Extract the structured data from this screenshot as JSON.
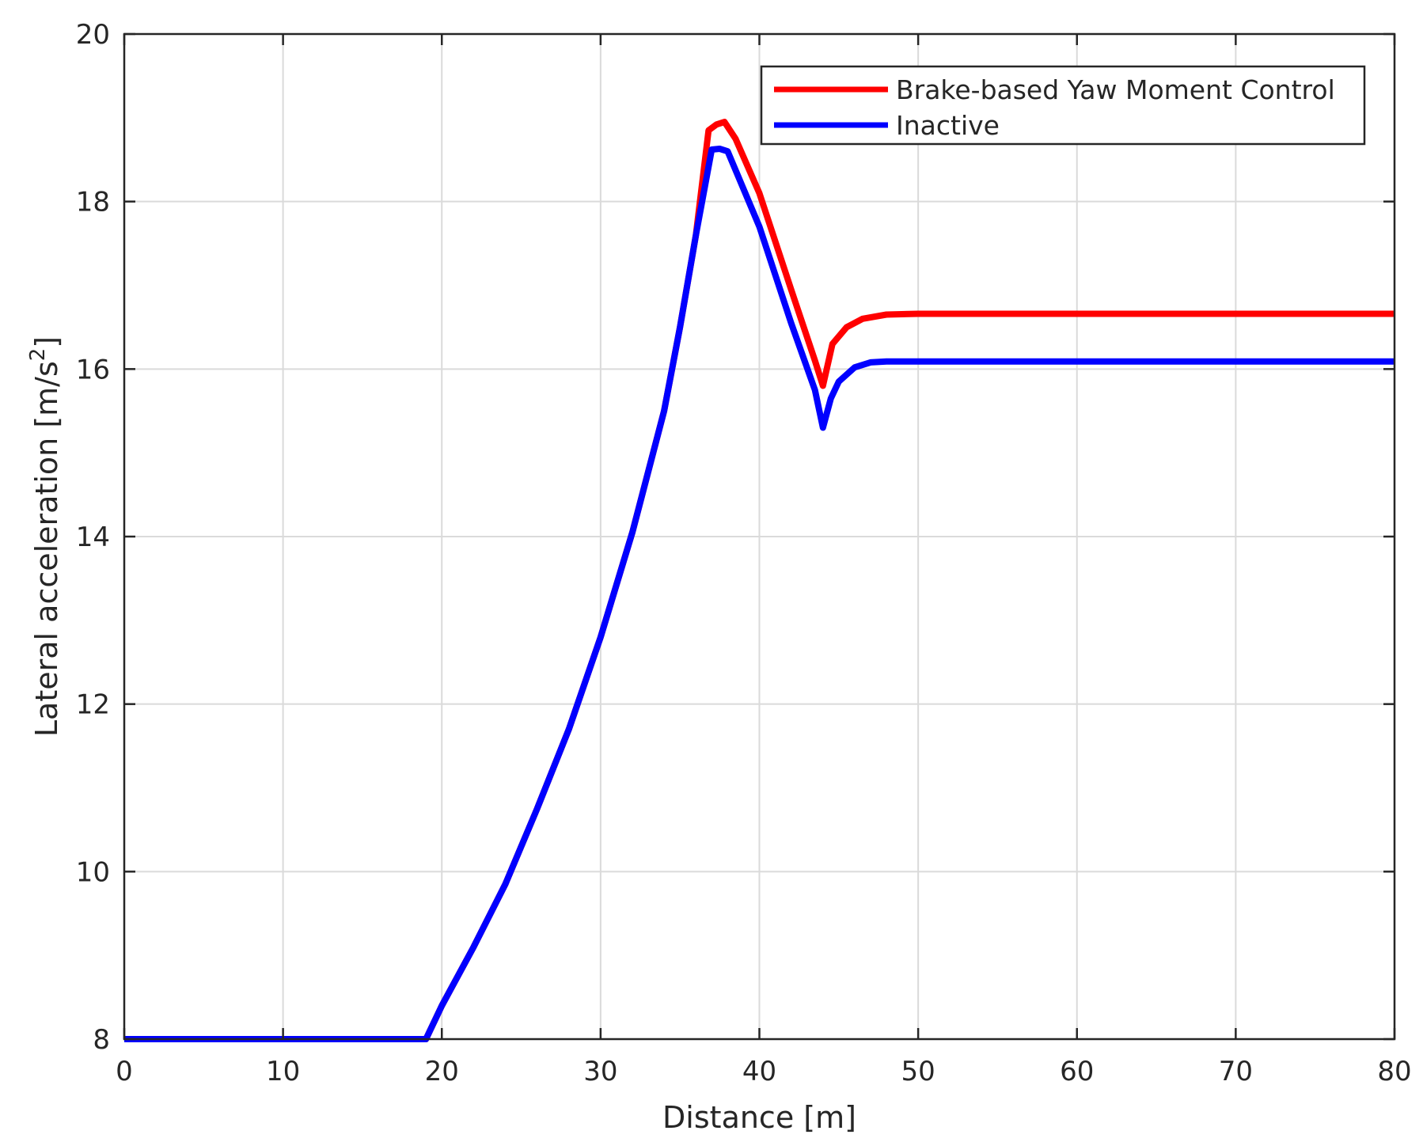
{
  "chart_data": {
    "type": "line",
    "title": "",
    "xlabel": "Distance [m]",
    "ylabel": "Lateral acceleration [m/s",
    "ylabel_superscript": "2",
    "ylabel_suffix": "]",
    "xlim": [
      0,
      80
    ],
    "ylim": [
      8,
      20
    ],
    "xticks": [
      "0",
      "10",
      "20",
      "30",
      "40",
      "50",
      "60",
      "70",
      "80"
    ],
    "yticks": [
      "8",
      "10",
      "12",
      "14",
      "16",
      "18",
      "20"
    ],
    "grid": true,
    "legend_position": "top-right",
    "series": [
      {
        "name": "Brake-based Yaw Moment Control",
        "color": "#ff0000",
        "x": [
          0,
          19,
          20,
          22,
          24,
          26,
          28,
          30,
          32,
          34,
          35,
          36,
          36.8,
          37.3,
          37.8,
          38.5,
          40,
          42,
          43.5,
          44,
          44.6,
          45.5,
          46.5,
          48,
          50,
          60,
          70,
          80
        ],
        "y": [
          8,
          8,
          8.4,
          9.1,
          9.85,
          10.75,
          11.7,
          12.8,
          14.05,
          15.5,
          16.5,
          17.6,
          18.85,
          18.92,
          18.95,
          18.75,
          18.1,
          16.95,
          16.1,
          15.8,
          16.3,
          16.5,
          16.6,
          16.65,
          16.66,
          16.66,
          16.66,
          16.66
        ]
      },
      {
        "name": "Inactive",
        "color": "#0000ff",
        "x": [
          0,
          19,
          20,
          22,
          24,
          26,
          28,
          30,
          32,
          34,
          35,
          36,
          37,
          37.5,
          38,
          40,
          42,
          43.5,
          44,
          44.5,
          45,
          46,
          47,
          48,
          50,
          60,
          70,
          80
        ],
        "y": [
          8,
          8,
          8.4,
          9.1,
          9.85,
          10.75,
          11.7,
          12.8,
          14.05,
          15.5,
          16.5,
          17.6,
          18.62,
          18.63,
          18.6,
          17.7,
          16.55,
          15.75,
          15.3,
          15.65,
          15.85,
          16.02,
          16.08,
          16.09,
          16.09,
          16.09,
          16.09,
          16.09
        ]
      }
    ]
  }
}
